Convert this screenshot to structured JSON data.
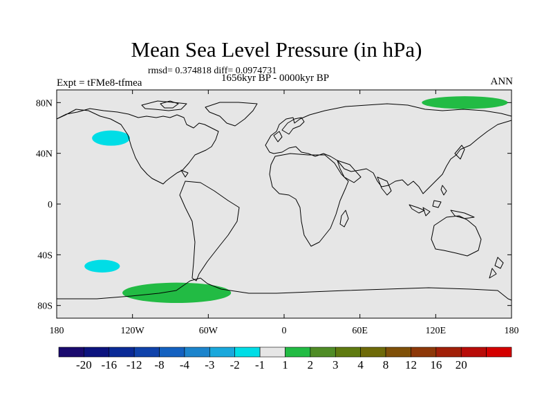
{
  "title": "Mean Sea Level Pressure (in hPa)",
  "subtitle_rmsd": "rmsd= 0.374818 diff= 0.0974731",
  "subtitle_period": "1656kyr BP - 0000kyr BP",
  "experiment": "Expt = tFMe8-tfmea",
  "season": "ANN",
  "map": {
    "projection": "cylindrical-equidistant",
    "lon_range": [
      -180,
      180
    ],
    "lat_range": [
      -90,
      90
    ],
    "ocean_color": "#e6e6e6",
    "coast_color": "#000000",
    "lat_ticks": [
      {
        "lat": 80,
        "label": "80N"
      },
      {
        "lat": 40,
        "label": "40N"
      },
      {
        "lat": 0,
        "label": "0"
      },
      {
        "lat": -40,
        "label": "40S"
      },
      {
        "lat": -80,
        "label": "80S"
      }
    ],
    "lon_ticks": [
      {
        "lon": -180,
        "label": "180"
      },
      {
        "lon": -120,
        "label": "120W"
      },
      {
        "lon": -60,
        "label": "60W"
      },
      {
        "lon": 0,
        "label": "0"
      },
      {
        "lon": 60,
        "label": "60E"
      },
      {
        "lon": 120,
        "label": "120E"
      },
      {
        "lon": 180,
        "label": "180"
      }
    ]
  },
  "anomaly_regions": [
    {
      "name": "north-pacific-negative",
      "level": "-2 to -1",
      "color": "#00dde6",
      "center_lon": -137,
      "center_lat": 52,
      "radius_lon": 15,
      "radius_lat": 6
    },
    {
      "name": "south-pacific-negative",
      "level": "-2 to -1",
      "color": "#00dde6",
      "center_lon": -144,
      "center_lat": -49,
      "radius_lon": 14,
      "radius_lat": 5
    },
    {
      "name": "arctic-positive",
      "level": "1 to 2",
      "color": "#22bb44",
      "center_lon": 143,
      "center_lat": 80,
      "radius_lon": 34,
      "radius_lat": 5
    },
    {
      "name": "antarctic-positive",
      "level": "1 to 2",
      "color": "#22bb44",
      "center_lon": -85,
      "center_lat": -70,
      "radius_lon": 43,
      "radius_lat": 8
    }
  ],
  "colorbar": {
    "colors": [
      "#1a0a6e",
      "#0c137e",
      "#0a2a96",
      "#0f42aa",
      "#1461c0",
      "#1c84cc",
      "#1aa8dc",
      "#00dde6",
      "#e6e6e6",
      "#22bb44",
      "#4f8c26",
      "#5e7a10",
      "#6e6a08",
      "#7f5008",
      "#8d3808",
      "#a12008",
      "#b80c08",
      "#d40000"
    ],
    "labels": [
      "-20",
      "-16",
      "-12",
      "-8",
      "-4",
      "-3",
      "-2",
      "-1",
      "1",
      "2",
      "3",
      "4",
      "8",
      "12",
      "16",
      "20"
    ]
  }
}
